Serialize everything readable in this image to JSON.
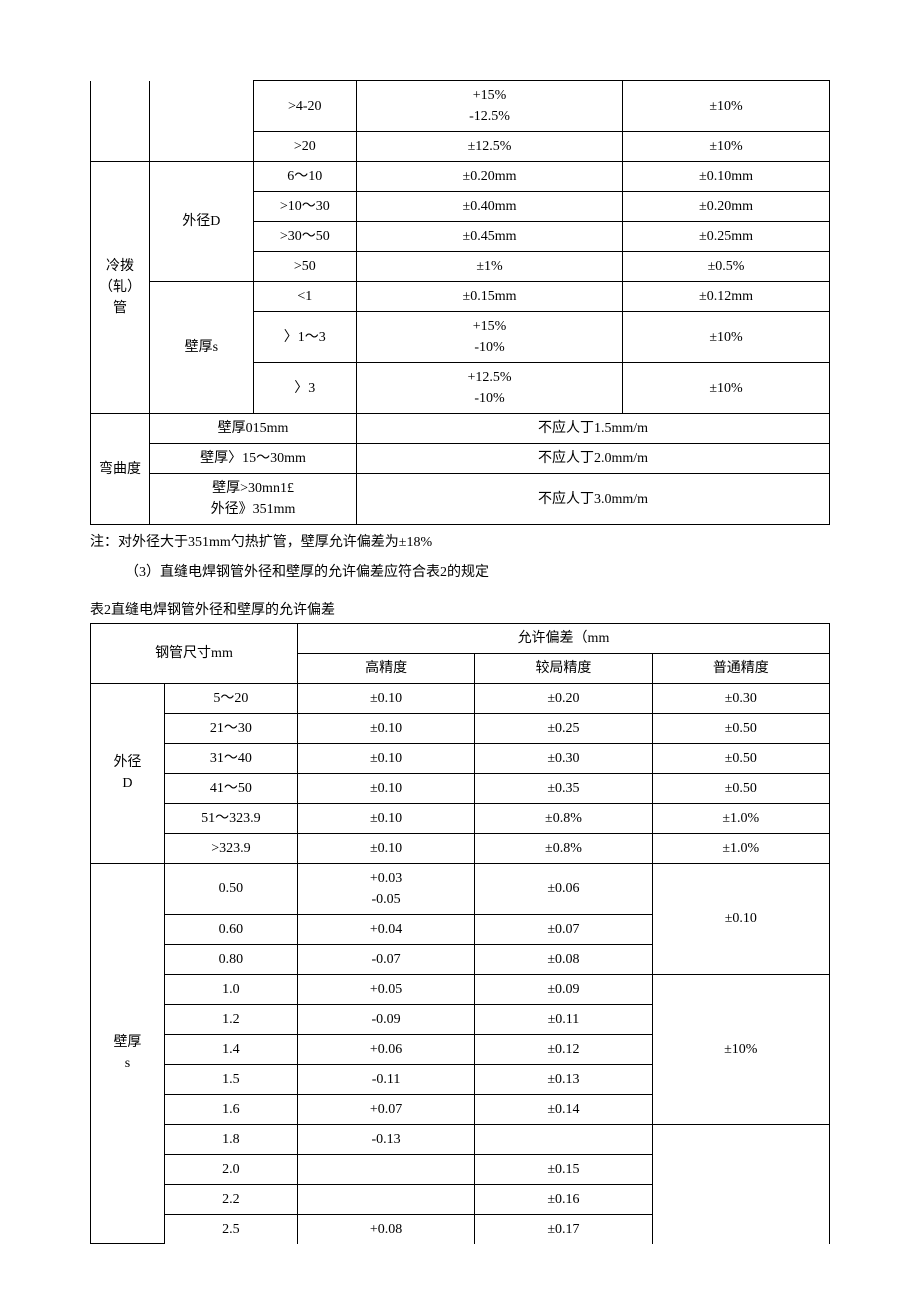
{
  "table1": {
    "rows": {
      "r1": {
        "range": ">4-20",
        "col1_l1": "+15%",
        "col1_l2": "-12.5%",
        "col2": "±10%"
      },
      "r2": {
        "range": ">20",
        "col1": "±12.5%",
        "col2": "±10%"
      }
    },
    "cold": {
      "label": "冷拨（轧）管",
      "diam_label": "外径D",
      "thick_label": "壁厚s",
      "d1": {
        "range": "6～10",
        "a": "±0.20mm",
        "b": "±0.10mm"
      },
      "d2": {
        "range": ">10～30",
        "a": "±0.40mm",
        "b": "±0.20mm"
      },
      "d3": {
        "range": ">30～50",
        "a": "±0.45mm",
        "b": "±0.25mm"
      },
      "d4": {
        "range": ">50",
        "a": "±1%",
        "b": "±0.5%"
      },
      "s1": {
        "range": "<1",
        "a": "±0.15mm",
        "b": "±0.12mm"
      },
      "s2": {
        "range": "〉1～3",
        "a_l1": "+15%",
        "a_l2": "-10%",
        "b": "±10%"
      },
      "s3": {
        "range": "〉3",
        "a_l1": "+12.5%",
        "a_l2": "-10%",
        "b": "±10%"
      }
    },
    "curve": {
      "label": "弯曲度",
      "r1": {
        "cond": "壁厚015mm",
        "val": "不应人丁1.5mm/m"
      },
      "r2": {
        "cond": "壁厚〉15～30mm",
        "val": "不应人丁2.0mm/m"
      },
      "r3": {
        "cond_l1": "壁厚>30mn1£",
        "cond_l2": "外径》351mm",
        "val": "不应人丁3.0mm/m"
      }
    }
  },
  "notes": {
    "n1": "注：对外径大于351mm勺热扩管，壁厚允许偏差为±18%",
    "n2": "（3）直缝电焊钢管外径和壁厚的允许偏差应符合表2的规定"
  },
  "table2": {
    "caption": "表2直缝电焊钢管外径和壁厚的允许偏差",
    "header": {
      "size": "钢管尺寸mm",
      "tol": "允许偏差（mm",
      "high": "高精度",
      "mid": "较局精度",
      "low": "普通精度"
    },
    "diam_label_l1": "外径",
    "diam_label_l2": "D",
    "diam": {
      "r1": {
        "size": "5～20",
        "high": "±0.10",
        "mid": "±0.20",
        "low": "±0.30"
      },
      "r2": {
        "size": "21～30",
        "high": "±0.10",
        "mid": "±0.25",
        "low": "±0.50"
      },
      "r3": {
        "size": "31～40",
        "high": "±0.10",
        "mid": "±0.30",
        "low": "±0.50"
      },
      "r4": {
        "size": "41～50",
        "high": "±0.10",
        "mid": "±0.35",
        "low": "±0.50"
      },
      "r5": {
        "size": "51～323.9",
        "high": "±0.10",
        "mid": "±0.8%",
        "low": "±1.0%"
      },
      "r6": {
        "size": ">323.9",
        "high": "±0.10",
        "mid": "±0.8%",
        "low": "±1.0%"
      }
    },
    "thick_label_l1": "壁厚",
    "thick_label_l2": "s",
    "thick": {
      "low_group1": "±0.10",
      "low_group2": "±10%",
      "r1": {
        "size": "0.50",
        "high_l1": "+0.03",
        "high_l2": "-0.05",
        "mid": "±0.06"
      },
      "r2": {
        "size": "0.60",
        "high": "+0.04",
        "mid": "±0.07"
      },
      "r3": {
        "size": "0.80",
        "high": "-0.07",
        "mid": "±0.08"
      },
      "r4": {
        "size": "1.0",
        "high": "+0.05",
        "mid": "±0.09"
      },
      "r5": {
        "size": "1.2",
        "high": "-0.09",
        "mid": "±0.11"
      },
      "r6": {
        "size": "1.4",
        "high": "+0.06",
        "mid": "±0.12"
      },
      "r7": {
        "size": "1.5",
        "high": "-0.11",
        "mid": "±0.13"
      },
      "r8": {
        "size": "1.6",
        "high": "+0.07",
        "mid": "±0.14"
      },
      "r9": {
        "size": "1.8",
        "high": "-0.13",
        "mid": ""
      },
      "r10": {
        "size": "2.0",
        "high": "",
        "mid": "±0.15"
      },
      "r11": {
        "size": "2.2",
        "high": "",
        "mid": "±0.16"
      },
      "r12": {
        "size": "2.5",
        "high": "+0.08",
        "mid": "±0.17"
      }
    }
  }
}
